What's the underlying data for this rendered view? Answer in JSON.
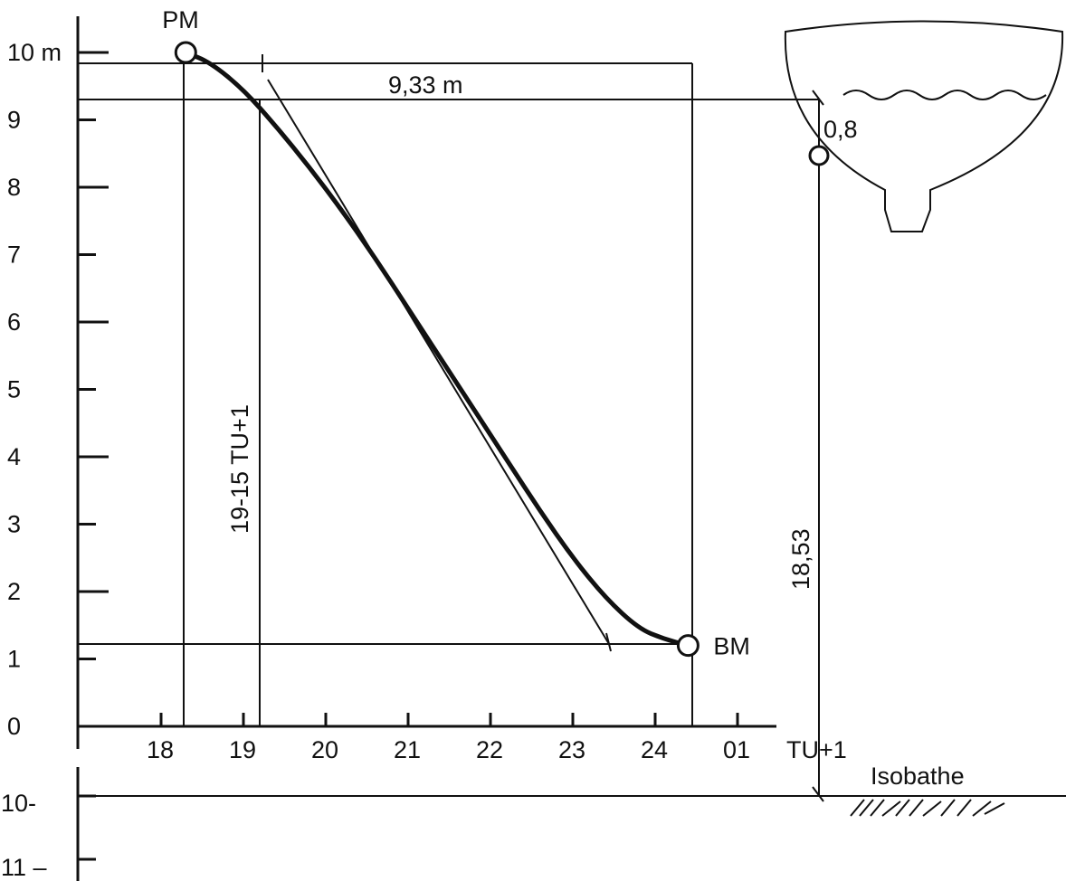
{
  "chart_data": {
    "type": "line",
    "title": "",
    "ylabel": "10 m",
    "xlabel": "TU+1",
    "y_ticks": [
      "0",
      "1",
      "2",
      "3",
      "4",
      "5",
      "6",
      "7",
      "8",
      "9",
      "10 m"
    ],
    "x_ticks": [
      "18",
      "19",
      "20",
      "21",
      "22",
      "23",
      "24",
      "01"
    ],
    "ylim": [
      0,
      10.5
    ],
    "series": [
      {
        "name": "",
        "x": [
          18.3,
          18.6,
          19.0,
          19.4,
          19.8,
          20.2,
          20.6,
          21.0,
          21.4,
          21.8,
          22.2,
          22.6,
          23.0,
          23.4,
          23.8,
          24.1,
          24.4
        ],
        "y": [
          10.0,
          9.85,
          9.45,
          8.9,
          8.3,
          7.65,
          6.95,
          6.2,
          5.45,
          4.7,
          3.95,
          3.2,
          2.5,
          1.9,
          1.45,
          1.3,
          1.2
        ]
      }
    ],
    "points": [
      {
        "label": "PM",
        "x": 18.3,
        "y": 10.0
      },
      {
        "label": "BM",
        "x": 24.4,
        "y": 1.2
      }
    ],
    "annotations": {
      "amplitude": "9,33 m",
      "time_label": "19-15 TU+1",
      "depth": "18,53",
      "draft": "0,8",
      "isobathe": "Isobathe"
    },
    "lower_ticks": [
      "10-",
      "11 –"
    ],
    "grid": false
  }
}
